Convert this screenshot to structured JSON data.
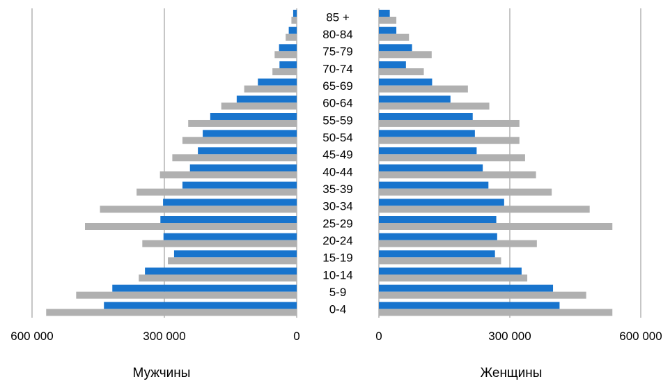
{
  "chart_data": {
    "type": "bar",
    "orientation": "horizontal",
    "layout": "population-pyramid",
    "categories": [
      "0-4",
      "5-9",
      "10-14",
      "15-19",
      "20-24",
      "25-29",
      "30-34",
      "35-39",
      "40-44",
      "45-49",
      "50-54",
      "55-59",
      "60-64",
      "65-69",
      "70-74",
      "75-79",
      "80-84",
      "85 +"
    ],
    "panels": [
      {
        "label": "Мужчины",
        "direction": "left",
        "xlim": [
          0,
          600000
        ],
        "ticks": [
          0,
          300000,
          600000
        ],
        "tick_labels": [
          "0",
          "300 000",
          "600 000"
        ],
        "series": [
          {
            "color": "#1874cd",
            "values": [
              437000,
              418000,
              344000,
              278000,
              302000,
              309000,
              303000,
              259000,
              242000,
              224000,
              213000,
              196000,
              136000,
              88000,
              39000,
              40000,
              18000,
              8000
            ]
          },
          {
            "color": "#b0b0b0",
            "values": [
              568000,
              500000,
              358000,
              292000,
              350000,
              480000,
              446000,
              363000,
              310000,
              282000,
              259000,
              246000,
              171000,
              119000,
              55000,
              50000,
              25000,
              12000
            ]
          }
        ]
      },
      {
        "label": "Женщины",
        "direction": "right",
        "xlim": [
          0,
          600000
        ],
        "ticks": [
          0,
          300000,
          600000
        ],
        "tick_labels": [
          "0",
          "300 000",
          "600 000"
        ],
        "series": [
          {
            "color": "#1874cd",
            "values": [
              414000,
              399000,
              327000,
              266000,
              271000,
              269000,
              287000,
              251000,
              238000,
              224000,
              220000,
              215000,
              164000,
              122000,
              62000,
              76000,
              40000,
              25000
            ]
          },
          {
            "color": "#b0b0b0",
            "values": [
              535000,
              475000,
              340000,
              280000,
              362000,
              535000,
              483000,
              396000,
              360000,
              335000,
              322000,
              322000,
              253000,
              204000,
              103000,
              121000,
              69000,
              40000
            ]
          }
        ]
      }
    ],
    "grid": true,
    "legend": "none"
  }
}
